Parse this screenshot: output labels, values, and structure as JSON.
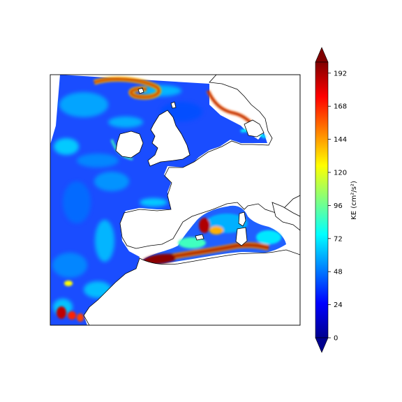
{
  "figure": {
    "colorbar": {
      "label": "KE (cm²/s²)",
      "ticks": [
        "0",
        "24",
        "48",
        "72",
        "96",
        "120",
        "144",
        "168",
        "192"
      ],
      "extend": "both",
      "colormap": [
        "#00008f",
        "#0000ff",
        "#0080ff",
        "#00ffff",
        "#80ff80",
        "#ffff00",
        "#ff8000",
        "#ff0000",
        "#800000"
      ]
    },
    "map": {
      "region": "North-East Atlantic and Western Mediterranean",
      "land_color": "#ffffff",
      "coast_color": "#000000"
    }
  },
  "chart_data": {
    "type": "heatmap",
    "title": "",
    "xlabel": "",
    "ylabel": "",
    "colorbar_label": "KE (cm²/s²)",
    "vmin": 0,
    "vmax": 200,
    "colorbar_ticks": [
      0,
      24,
      48,
      72,
      96,
      120,
      144,
      168,
      192
    ],
    "extend": "both",
    "colormap": "jet"
  }
}
